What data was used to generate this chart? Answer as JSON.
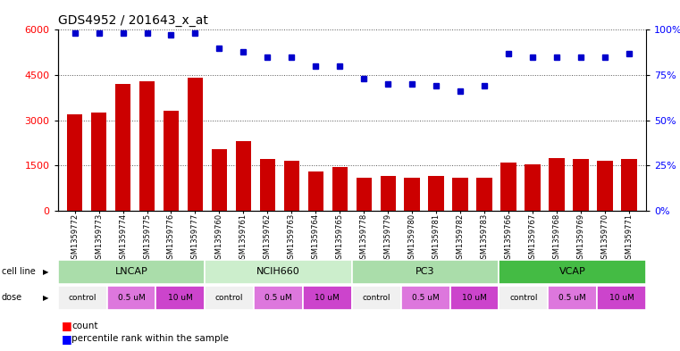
{
  "title": "GDS4952 / 201643_x_at",
  "samples": [
    "GSM1359772",
    "GSM1359773",
    "GSM1359774",
    "GSM1359775",
    "GSM1359776",
    "GSM1359777",
    "GSM1359760",
    "GSM1359761",
    "GSM1359762",
    "GSM1359763",
    "GSM1359764",
    "GSM1359765",
    "GSM1359778",
    "GSM1359779",
    "GSM1359780",
    "GSM1359781",
    "GSM1359782",
    "GSM1359783",
    "GSM1359766",
    "GSM1359767",
    "GSM1359768",
    "GSM1359769",
    "GSM1359770",
    "GSM1359771"
  ],
  "counts": [
    3200,
    3250,
    4200,
    4300,
    3300,
    4400,
    2050,
    2300,
    1700,
    1650,
    1300,
    1450,
    1100,
    1150,
    1100,
    1150,
    1100,
    1080,
    1600,
    1550,
    1750,
    1700,
    1650,
    1700
  ],
  "percentiles": [
    98,
    98,
    98,
    98,
    97,
    98,
    90,
    88,
    85,
    85,
    80,
    80,
    73,
    70,
    70,
    69,
    66,
    69,
    87,
    85,
    85,
    85,
    85,
    87
  ],
  "bar_color": "#cc0000",
  "dot_color": "#0000cc",
  "ylim_left": [
    0,
    6000
  ],
  "ylim_right": [
    0,
    100
  ],
  "yticks_left": [
    0,
    1500,
    3000,
    4500,
    6000
  ],
  "yticks_right": [
    0,
    25,
    50,
    75,
    100
  ],
  "cell_lines": [
    {
      "label": "LNCAP",
      "start": 0,
      "end": 6,
      "color": "#aaddaa"
    },
    {
      "label": "NCIH660",
      "start": 6,
      "end": 12,
      "color": "#cceecc"
    },
    {
      "label": "PC3",
      "start": 12,
      "end": 18,
      "color": "#aaddaa"
    },
    {
      "label": "VCAP",
      "start": 18,
      "end": 24,
      "color": "#44bb44"
    }
  ],
  "doses": [
    {
      "label": "control",
      "start": 0,
      "end": 2,
      "color": "#f0f0f0"
    },
    {
      "label": "0.5 uM",
      "start": 2,
      "end": 4,
      "color": "#dd77dd"
    },
    {
      "label": "10 uM",
      "start": 4,
      "end": 6,
      "color": "#cc44cc"
    },
    {
      "label": "control",
      "start": 6,
      "end": 8,
      "color": "#f0f0f0"
    },
    {
      "label": "0.5 uM",
      "start": 8,
      "end": 10,
      "color": "#dd77dd"
    },
    {
      "label": "10 uM",
      "start": 10,
      "end": 12,
      "color": "#cc44cc"
    },
    {
      "label": "control",
      "start": 12,
      "end": 14,
      "color": "#f0f0f0"
    },
    {
      "label": "0.5 uM",
      "start": 14,
      "end": 16,
      "color": "#dd77dd"
    },
    {
      "label": "10 uM",
      "start": 16,
      "end": 18,
      "color": "#cc44cc"
    },
    {
      "label": "control",
      "start": 18,
      "end": 20,
      "color": "#f0f0f0"
    },
    {
      "label": "0.5 uM",
      "start": 20,
      "end": 22,
      "color": "#dd77dd"
    },
    {
      "label": "10 uM",
      "start": 22,
      "end": 24,
      "color": "#cc44cc"
    }
  ],
  "fig_bg": "#ffffff",
  "plot_bg": "#ffffff",
  "xticklabel_bg": "#d8d8d8",
  "grid_color": "#555555"
}
